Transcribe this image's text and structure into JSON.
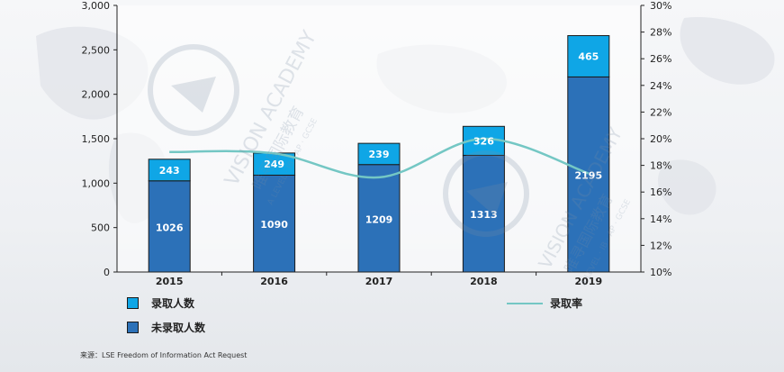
{
  "chart_data": {
    "type": "bar",
    "stacked": true,
    "categories": [
      "2015",
      "2016",
      "2017",
      "2018",
      "2019"
    ],
    "series": [
      {
        "name": "未录取人数",
        "kind": "bar",
        "values": [
          1026,
          1090,
          1209,
          1313,
          2195
        ],
        "color": "#2c71b8"
      },
      {
        "name": "录取人数",
        "kind": "bar",
        "values": [
          243,
          249,
          239,
          326,
          465
        ],
        "color": "#0fa6e6"
      },
      {
        "name": "录取率",
        "kind": "line",
        "axis": "right",
        "values": [
          19.0,
          18.9,
          17.1,
          20.0,
          17.4
        ],
        "color": "#74c7c4"
      }
    ],
    "y_left": {
      "ylim": [
        0,
        3000
      ],
      "ticks": [
        0,
        500,
        1000,
        1500,
        2000,
        2500,
        3000
      ],
      "tick_labels": [
        "0",
        "500",
        "1,000",
        "1,500",
        "2,000",
        "2,500",
        "3,000"
      ]
    },
    "y_right": {
      "ylim": [
        10,
        30
      ],
      "ticks": [
        10,
        12,
        14,
        16,
        18,
        20,
        22,
        24,
        26,
        28,
        30
      ],
      "tick_labels": [
        "10%",
        "12%",
        "14%",
        "16%",
        "18%",
        "20%",
        "22%",
        "24%",
        "26%",
        "28%",
        "30%"
      ]
    },
    "grid": false,
    "legend": "bottom"
  },
  "legend": {
    "admitted": "录取人数",
    "not_admitted": "未录取人数",
    "rate": "录取率"
  },
  "source": "来源：LSE Freedom of Information Act Request",
  "watermark": {
    "main": "VISION ACADEMY",
    "sub": "唯寻国际教育",
    "programs": "A LEVEL · IB · AP · GCSE"
  }
}
